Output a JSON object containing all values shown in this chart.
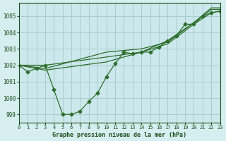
{
  "xlabel": "Graphe pression niveau de la mer (hPa)",
  "ylabel": "",
  "background_color": "#d6eef0",
  "plot_bg_color": "#cce8ec",
  "grid_color": "#aacccc",
  "text_color": "#1a4d1a",
  "line_color": "#2d6e2d",
  "xlim": [
    0,
    23
  ],
  "ylim": [
    998.5,
    1005.8
  ],
  "yticks": [
    999,
    1000,
    1001,
    1002,
    1003,
    1004,
    1005
  ],
  "xticks": [
    0,
    1,
    2,
    3,
    4,
    5,
    6,
    7,
    8,
    9,
    10,
    11,
    12,
    13,
    14,
    15,
    16,
    17,
    18,
    19,
    20,
    21,
    22,
    23
  ],
  "series": [
    {
      "x": [
        0,
        1,
        2,
        3,
        4,
        5,
        6,
        7,
        8,
        9,
        10,
        11,
        12,
        13,
        14,
        15,
        16,
        17,
        18,
        19,
        20,
        21,
        22,
        23
      ],
      "y": [
        1002.0,
        1001.6,
        1001.8,
        1002.0,
        1000.5,
        999.0,
        999.0,
        999.2,
        999.8,
        1000.3,
        1001.3,
        1002.1,
        1002.8,
        1002.7,
        1002.8,
        1002.8,
        1003.1,
        1003.5,
        1003.8,
        1004.5,
        1004.5,
        1005.0,
        1005.2,
        1005.3
      ],
      "has_markers": true
    },
    {
      "x": [
        0,
        3,
        10,
        14,
        17,
        20,
        22,
        23
      ],
      "y": [
        1002.0,
        1002.0,
        1002.5,
        1002.8,
        1003.3,
        1004.5,
        1005.2,
        1005.3
      ],
      "has_markers": false
    },
    {
      "x": [
        0,
        3,
        10,
        14,
        17,
        20,
        22,
        23
      ],
      "y": [
        1002.0,
        1001.7,
        1002.2,
        1002.8,
        1003.5,
        1004.6,
        1005.5,
        1005.5
      ],
      "has_markers": false
    },
    {
      "x": [
        0,
        3,
        10,
        14,
        17,
        20,
        22,
        23
      ],
      "y": [
        1002.0,
        1001.8,
        1002.8,
        1003.0,
        1003.4,
        1004.6,
        1005.4,
        1005.4
      ],
      "has_markers": false
    }
  ]
}
